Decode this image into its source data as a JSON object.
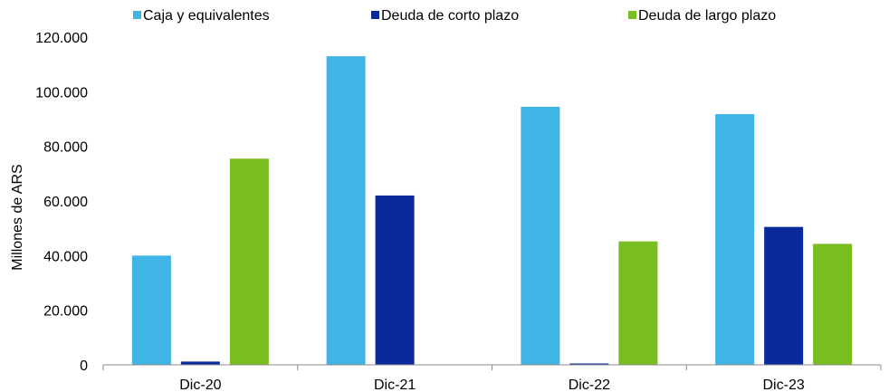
{
  "chart_data": {
    "type": "bar",
    "title": "",
    "xlabel": "",
    "ylabel": "Millones de ARS",
    "categories": [
      "Dic-20",
      "Dic-21",
      "Dic-22",
      "Dic-23"
    ],
    "series": [
      {
        "name": "Caja y equivalentes",
        "color": "#41B4E6",
        "values": [
          40000,
          113000,
          94500,
          91800
        ]
      },
      {
        "name": "Deuda de corto plazo",
        "color": "#0A2A9B",
        "values": [
          1200,
          62000,
          500,
          50500
        ]
      },
      {
        "name": "Deuda de largo plazo",
        "color": "#78BE20",
        "values": [
          75500,
          0,
          45200,
          44300
        ]
      }
    ],
    "ylim": [
      0,
      120000
    ],
    "yticks": [
      0,
      20000,
      40000,
      60000,
      80000,
      100000,
      120000
    ],
    "ytick_labels": [
      "0",
      "20.000",
      "40.000",
      "60.000",
      "80.000",
      "100.000",
      "120.000"
    ],
    "grid": false,
    "legend_position": "top"
  }
}
